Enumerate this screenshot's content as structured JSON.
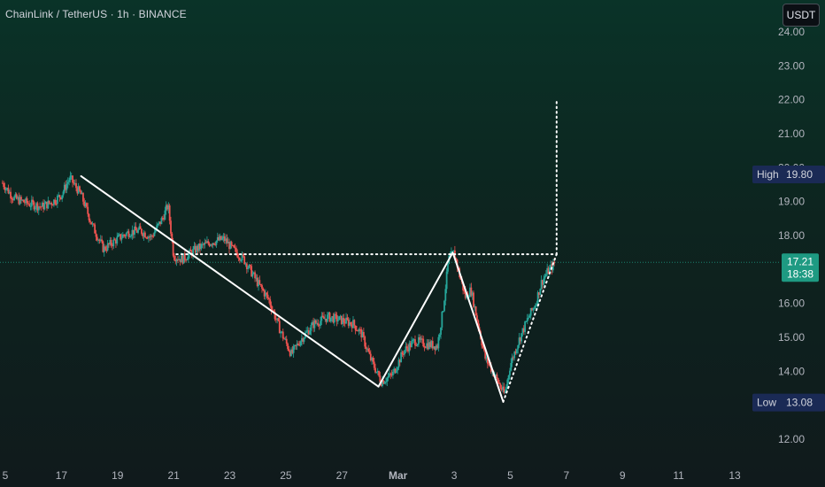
{
  "header": {
    "symbol_line": "ChainLink / TetherUS · 1h · BINANCE",
    "currency_button": "USDT"
  },
  "chart_data": {
    "type": "candlestick",
    "price_unit": "USDT",
    "ylim": [
      11.6,
      24.3
    ],
    "y_ticks": [
      {
        "v": 24,
        "label": "24.00"
      },
      {
        "v": 23,
        "label": "23.00"
      },
      {
        "v": 22,
        "label": "22.00"
      },
      {
        "v": 21,
        "label": "21.00"
      },
      {
        "v": 20,
        "label": "20.00"
      },
      {
        "v": 19,
        "label": "19.00"
      },
      {
        "v": 18,
        "label": "18.00"
      },
      {
        "v": 16,
        "label": "16.00"
      },
      {
        "v": 15,
        "label": "15.00"
      },
      {
        "v": 14,
        "label": "14.00"
      },
      {
        "v": 12,
        "label": "12.00"
      }
    ],
    "x_range_days": [
      14.9,
      40.8
    ],
    "x_ticks": [
      {
        "d": 15,
        "label": "5"
      },
      {
        "d": 17,
        "label": "17"
      },
      {
        "d": 19,
        "label": "19"
      },
      {
        "d": 21,
        "label": "21"
      },
      {
        "d": 23,
        "label": "23"
      },
      {
        "d": 25,
        "label": "25"
      },
      {
        "d": 27,
        "label": "27"
      },
      {
        "d": 29,
        "label": "Mar"
      },
      {
        "d": 31,
        "label": "3"
      },
      {
        "d": 33,
        "label": "5"
      },
      {
        "d": 35,
        "label": "7"
      },
      {
        "d": 37,
        "label": "9"
      },
      {
        "d": 39,
        "label": "11"
      },
      {
        "d": 41,
        "label": "13"
      }
    ],
    "price_path": [
      [
        14.9,
        19.55
      ],
      [
        15.3,
        19.1
      ],
      [
        15.8,
        18.95
      ],
      [
        16.3,
        18.85
      ],
      [
        16.7,
        19.0
      ],
      [
        17.0,
        19.2
      ],
      [
        17.3,
        19.7
      ],
      [
        17.7,
        19.2
      ],
      [
        18.1,
        18.3
      ],
      [
        18.5,
        17.6
      ],
      [
        19.0,
        17.9
      ],
      [
        19.4,
        18.1
      ],
      [
        19.8,
        18.15
      ],
      [
        20.2,
        17.95
      ],
      [
        20.6,
        18.5
      ],
      [
        20.8,
        18.9
      ],
      [
        21.0,
        17.4
      ],
      [
        21.3,
        17.3
      ],
      [
        21.8,
        17.6
      ],
      [
        22.3,
        17.8
      ],
      [
        22.8,
        17.9
      ],
      [
        23.1,
        17.6
      ],
      [
        23.5,
        17.3
      ],
      [
        24.0,
        16.6
      ],
      [
        24.4,
        16.1
      ],
      [
        24.8,
        15.2
      ],
      [
        25.2,
        14.5
      ],
      [
        25.5,
        14.9
      ],
      [
        26.0,
        15.4
      ],
      [
        26.5,
        15.6
      ],
      [
        27.0,
        15.5
      ],
      [
        27.4,
        15.4
      ],
      [
        27.7,
        15.1
      ],
      [
        28.0,
        14.4
      ],
      [
        28.4,
        13.7
      ],
      [
        28.8,
        13.9
      ],
      [
        29.2,
        14.6
      ],
      [
        29.6,
        14.9
      ],
      [
        30.0,
        14.8
      ],
      [
        30.4,
        14.75
      ],
      [
        30.6,
        15.8
      ],
      [
        30.8,
        17.3
      ],
      [
        31.0,
        17.5
      ],
      [
        31.2,
        16.8
      ],
      [
        31.4,
        16.2
      ],
      [
        31.6,
        16.4
      ],
      [
        31.8,
        15.6
      ],
      [
        32.1,
        14.4
      ],
      [
        32.5,
        13.8
      ],
      [
        32.8,
        13.3
      ],
      [
        33.0,
        14.2
      ],
      [
        33.3,
        14.9
      ],
      [
        33.6,
        15.5
      ],
      [
        33.9,
        16.0
      ],
      [
        34.1,
        16.6
      ],
      [
        34.3,
        16.9
      ],
      [
        34.5,
        17.1
      ],
      [
        34.6,
        17.21
      ]
    ],
    "pattern_lines": [
      {
        "style": "solid",
        "points": [
          [
            17.7,
            19.75
          ],
          [
            28.3,
            13.55
          ]
        ]
      },
      {
        "style": "solid",
        "points": [
          [
            28.3,
            13.55
          ],
          [
            30.95,
            17.5
          ],
          [
            32.75,
            13.1
          ]
        ]
      },
      {
        "style": "dotted",
        "points": [
          [
            32.75,
            13.1
          ],
          [
            34.65,
            17.45
          ]
        ]
      },
      {
        "style": "dotted",
        "points": [
          [
            21.1,
            17.45
          ],
          [
            34.65,
            17.45
          ]
        ]
      },
      {
        "style": "dotted",
        "points": [
          [
            34.65,
            17.45
          ],
          [
            34.65,
            22.0
          ]
        ]
      }
    ],
    "current_price": {
      "label": "17.21",
      "value": 17.21,
      "countdown": "18:38"
    },
    "high_marker": {
      "label": "High",
      "value_label": "19.80",
      "value": 19.8
    },
    "low_marker": {
      "label": "Low",
      "value_label": "13.08",
      "value": 13.08
    },
    "colors": {
      "up": "#26a69a",
      "down": "#ef5350",
      "pattern": "#ffffff",
      "current_price_bg": "#1e9a82",
      "marker_bg": "#1a2a55"
    }
  }
}
